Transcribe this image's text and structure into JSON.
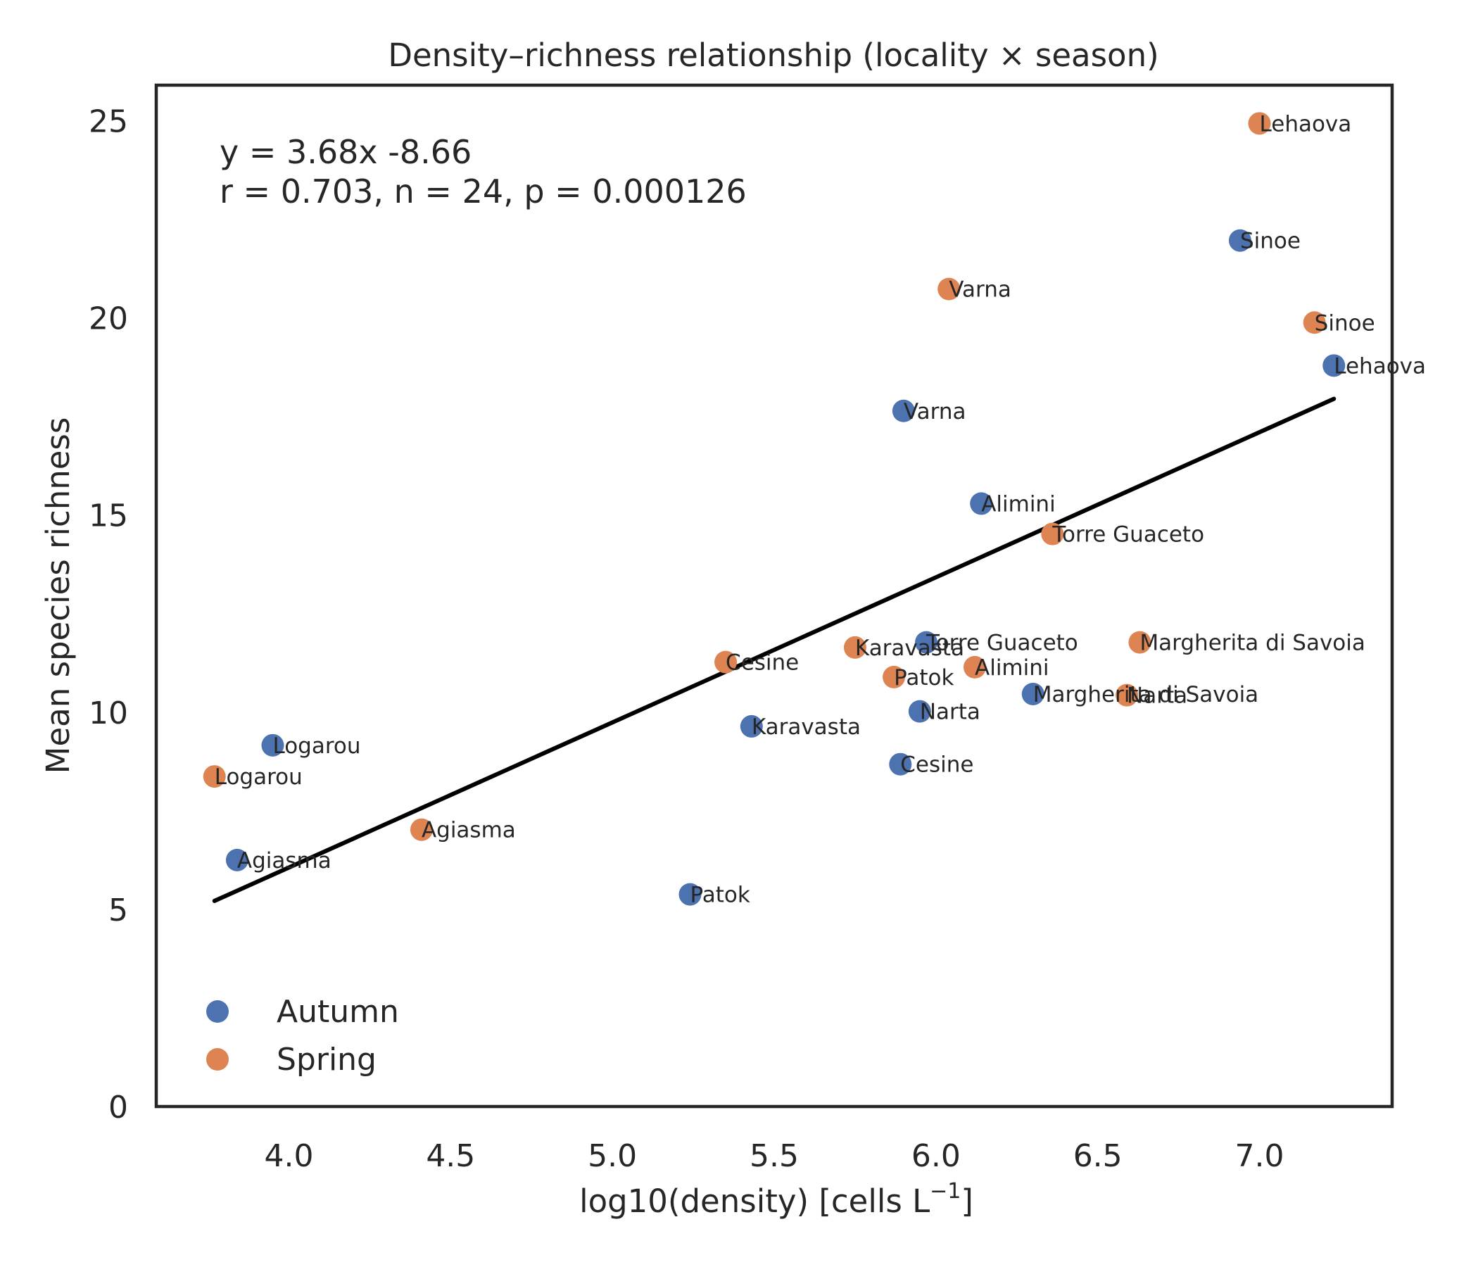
{
  "chart_data": {
    "type": "scatter",
    "title": "Density–richness relationship (locality × season)",
    "xlabel_main": "log10(density) [cells L",
    "xlabel_sup": "−1",
    "xlabel_end": "]",
    "ylabel": "Mean species richness",
    "xlim": [
      3.59,
      7.41
    ],
    "ylim": [
      0,
      25.9
    ],
    "xticks": [
      4.0,
      4.5,
      5.0,
      5.5,
      6.0,
      6.5,
      7.0
    ],
    "xtick_labels": [
      "4.0",
      "4.5",
      "5.0",
      "5.5",
      "6.0",
      "6.5",
      "7.0"
    ],
    "yticks": [
      0,
      5,
      10,
      15,
      20,
      25
    ],
    "ytick_labels": [
      "0",
      "5",
      "10",
      "15",
      "20",
      "25"
    ],
    "grid": false,
    "legend_position": "bottom-left",
    "annotation": [
      "y = 3.68x -8.66",
      "r = 0.703, n = 24, p = 0.000126"
    ],
    "fit": {
      "slope": 3.68,
      "intercept": -8.66,
      "x_range": [
        3.77,
        7.23
      ],
      "r": 0.703,
      "n": 24,
      "p": 0.000126
    },
    "series": [
      {
        "name": "Autumn",
        "color": "#4c72b0",
        "points": [
          {
            "label": "Logarou",
            "x": 3.95,
            "y": 9.16
          },
          {
            "label": "Agiasma",
            "x": 3.84,
            "y": 6.25
          },
          {
            "label": "Patok",
            "x": 5.24,
            "y": 5.38
          },
          {
            "label": "Karavasta",
            "x": 5.43,
            "y": 9.64
          },
          {
            "label": "Cesine",
            "x": 5.89,
            "y": 8.68
          },
          {
            "label": "Narta",
            "x": 5.95,
            "y": 10.02
          },
          {
            "label": "Torre Guaceto",
            "x": 5.97,
            "y": 11.77
          },
          {
            "label": "Varna",
            "x": 5.9,
            "y": 17.64
          },
          {
            "label": "Alimini",
            "x": 6.14,
            "y": 15.29
          },
          {
            "label": "Margherita di Savoia",
            "x": 6.3,
            "y": 10.46
          },
          {
            "label": "Sinoe",
            "x": 6.94,
            "y": 21.96
          },
          {
            "label": "Lehaova",
            "x": 7.23,
            "y": 18.79
          }
        ]
      },
      {
        "name": "Spring",
        "color": "#dd8452",
        "points": [
          {
            "label": "Logarou",
            "x": 3.77,
            "y": 8.37
          },
          {
            "label": "Agiasma",
            "x": 4.41,
            "y": 7.02
          },
          {
            "label": "Cesine",
            "x": 5.35,
            "y": 11.27
          },
          {
            "label": "Karavasta",
            "x": 5.75,
            "y": 11.64
          },
          {
            "label": "Patok",
            "x": 5.87,
            "y": 10.89
          },
          {
            "label": "Alimini",
            "x": 6.12,
            "y": 11.14
          },
          {
            "label": "Torre Guaceto",
            "x": 6.36,
            "y": 14.52
          },
          {
            "label": "Narta",
            "x": 6.59,
            "y": 10.43
          },
          {
            "label": "Margherita di Savoia",
            "x": 6.63,
            "y": 11.77
          },
          {
            "label": "Varna",
            "x": 6.04,
            "y": 20.73
          },
          {
            "label": "Sinoe",
            "x": 7.17,
            "y": 19.88
          },
          {
            "label": "Lehaova",
            "x": 7.0,
            "y": 24.93
          }
        ]
      }
    ]
  }
}
